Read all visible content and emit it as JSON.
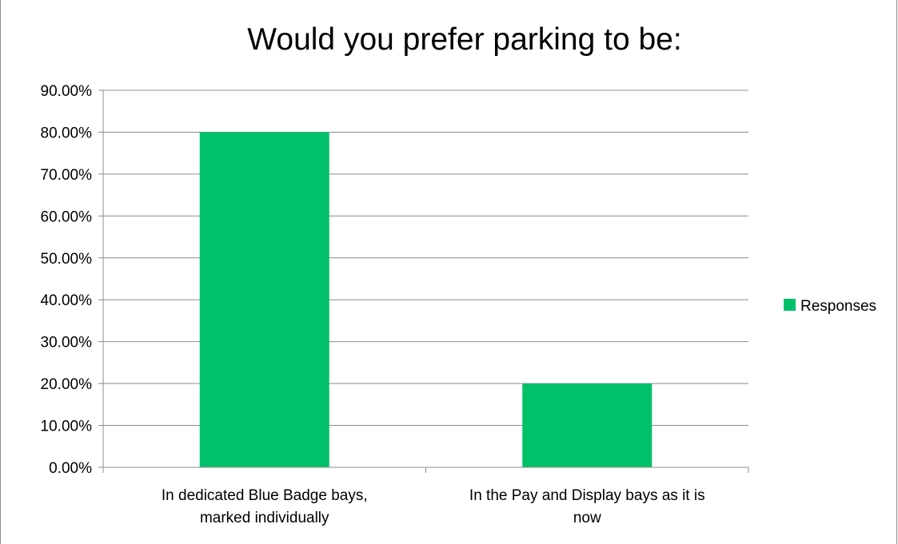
{
  "chart_data": {
    "type": "bar",
    "title": "Would you prefer parking to be:",
    "categories": [
      [
        "In dedicated Blue Badge bays,",
        "marked individually"
      ],
      [
        "In the Pay and Display bays as it is",
        "now"
      ]
    ],
    "series": [
      {
        "name": "Responses",
        "values": [
          0.8,
          0.2
        ],
        "color": "#00c06a"
      }
    ],
    "ylim": [
      0,
      0.9
    ],
    "ytick_step": 0.1,
    "ytick_labels": [
      "0.00%",
      "10.00%",
      "20.00%",
      "30.00%",
      "40.00%",
      "50.00%",
      "60.00%",
      "70.00%",
      "80.00%",
      "90.00%"
    ],
    "grid": true,
    "legend_position": "right",
    "colors": {
      "bar": "#00c06a",
      "grid": "#8c8c8c",
      "axis": "#8c8c8c"
    }
  }
}
